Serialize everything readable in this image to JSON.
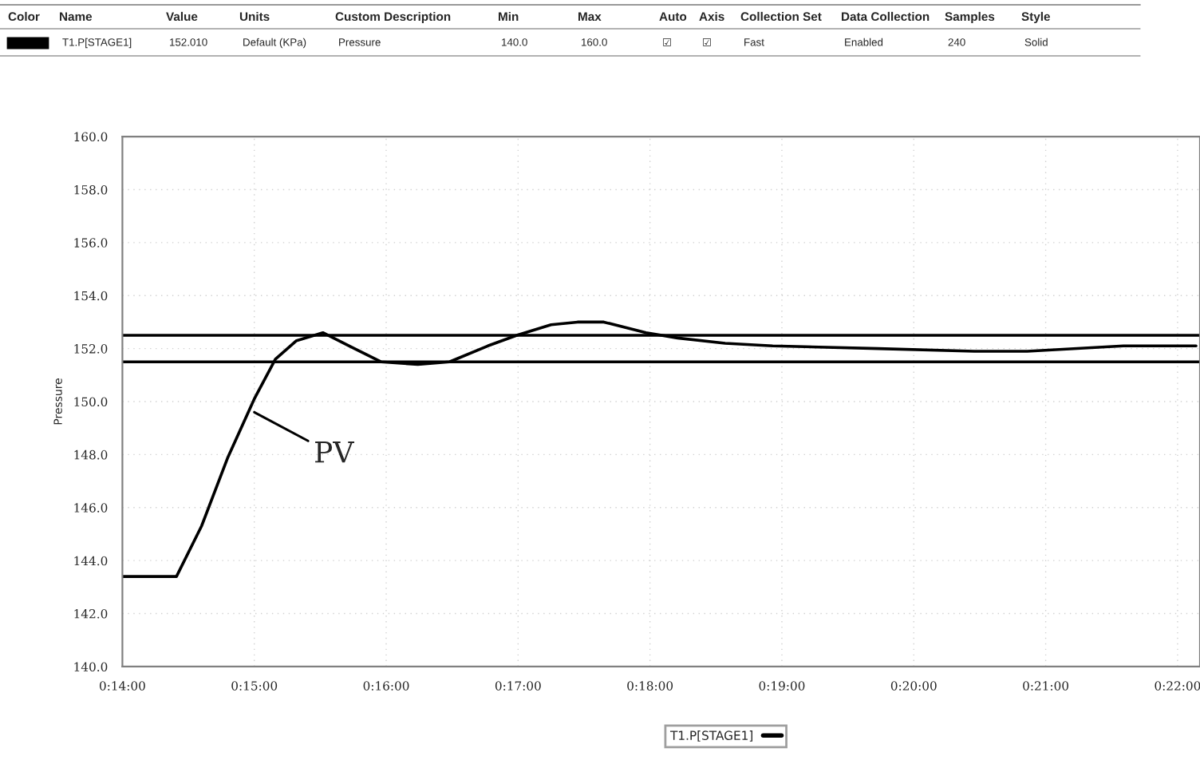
{
  "chart_data": {
    "type": "line",
    "ylabel": "Pressure",
    "x": [
      14.0,
      14.41,
      14.6,
      14.8,
      15.0,
      15.16,
      15.32,
      15.52,
      15.72,
      15.96,
      16.24,
      16.48,
      16.77,
      16.99,
      17.25,
      17.45,
      17.65,
      17.97,
      18.21,
      18.57,
      18.93,
      19.73,
      20.46,
      20.86,
      21.59,
      22.14
    ],
    "series": [
      {
        "name": "T1.P[STAGE1]",
        "color": "#000000",
        "values": [
          143.4,
          143.4,
          145.3,
          147.9,
          150.1,
          151.6,
          152.3,
          152.6,
          152.1,
          151.5,
          151.4,
          151.5,
          152.1,
          152.5,
          152.9,
          153.0,
          153.0,
          152.6,
          152.4,
          152.2,
          152.1,
          152.0,
          151.9,
          151.9,
          152.1,
          152.1
        ]
      }
    ],
    "xlim": [
      14.0,
      22.17
    ],
    "xticks": [
      {
        "value": 14,
        "label": "0:14:00"
      },
      {
        "value": 15,
        "label": "0:15:00"
      },
      {
        "value": 16,
        "label": "0:16:00"
      },
      {
        "value": 17,
        "label": "0:17:00"
      },
      {
        "value": 18,
        "label": "0:18:00"
      },
      {
        "value": 19,
        "label": "0:19:00"
      },
      {
        "value": 20,
        "label": "0:20:00"
      },
      {
        "value": 21,
        "label": "0:21:00"
      },
      {
        "value": 22,
        "label": "0:22:00"
      }
    ],
    "ylim": [
      140,
      160
    ],
    "yticks": [
      {
        "value": 140,
        "label": "140.0"
      },
      {
        "value": 142,
        "label": "142.0"
      },
      {
        "value": 144,
        "label": "144.0"
      },
      {
        "value": 146,
        "label": "146.0"
      },
      {
        "value": 148,
        "label": "148.0"
      },
      {
        "value": 150,
        "label": "150.0"
      },
      {
        "value": 152,
        "label": "152.0"
      },
      {
        "value": 154,
        "label": "154.0"
      },
      {
        "value": 156,
        "label": "156.0"
      },
      {
        "value": 158,
        "label": "158.0"
      },
      {
        "value": 160,
        "label": "160.0"
      }
    ],
    "ref_lines": [
      {
        "axis": "y",
        "value": 152.5,
        "color": "#000000"
      },
      {
        "axis": "y",
        "value": 151.5,
        "color": "#000000"
      }
    ],
    "annotations": [
      {
        "text": "PV",
        "x": 15.0,
        "y": 149.6
      },
      "Color",
      "Name",
      "Value",
      "Units",
      "Custom Description",
      "Min",
      "Max",
      "Auto",
      "Axis",
      "Collection Set",
      "Data Collection",
      "Samples",
      "Style",
      "T1.P[STAGE1]",
      "152.010",
      "Default (KPa)",
      "Pressure",
      "140.0",
      "160.0",
      "☑",
      "☑",
      "Fast",
      "Enabled",
      "240",
      "Solid"
    ],
    "grid": true,
    "legend": "bottom",
    "line_style": "solid",
    "marker": "none"
  }
}
